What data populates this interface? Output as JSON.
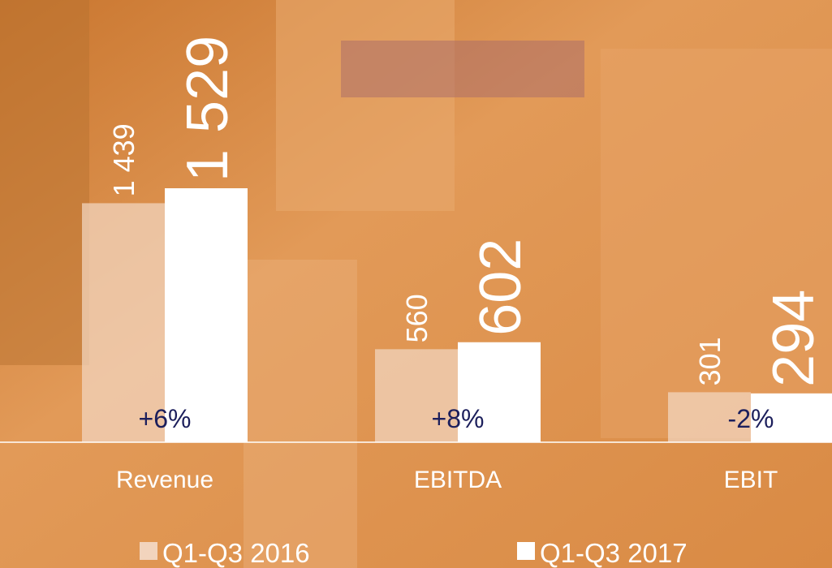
{
  "chart_data": {
    "type": "bar",
    "categories": [
      "Revenue",
      "EBITDA",
      "EBIT"
    ],
    "series": [
      {
        "name": "Q1-Q3 2016",
        "color": "#f2d4bd",
        "values": [
          1439,
          560,
          301
        ],
        "value_labels": [
          "1 439",
          "560",
          "301"
        ]
      },
      {
        "name": "Q1-Q3 2017",
        "color": "#ffffff",
        "values": [
          1529,
          602,
          294
        ],
        "value_labels": [
          "1 529",
          "602",
          "294"
        ]
      }
    ],
    "annotations": [
      "+6%",
      "+8%",
      "-2%"
    ],
    "legend": "bottom"
  }
}
